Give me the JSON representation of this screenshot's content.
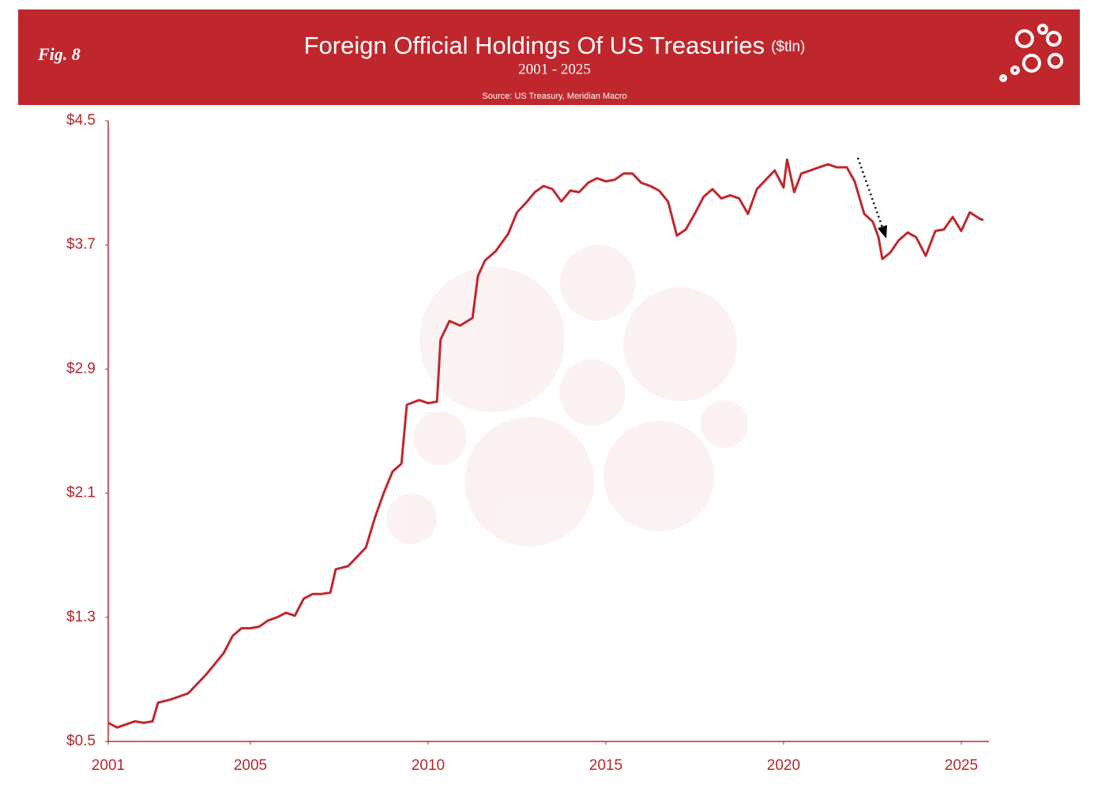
{
  "fig_label": "Fig. 8",
  "source": "Source: US Treasury, Meridian Macro",
  "chart_data": {
    "type": "line",
    "title": "Foreign Official Holdings Of US Treasuries",
    "title_unit": "($tln)",
    "subtitle": "2001 - 2025",
    "color": "#c0272d",
    "x": [
      2001.0,
      2001.25,
      2001.5,
      2001.75,
      2002.0,
      2002.25,
      2002.4,
      2002.75,
      2003.0,
      2003.25,
      2003.5,
      2003.75,
      2004.0,
      2004.25,
      2004.5,
      2004.75,
      2005.0,
      2005.25,
      2005.5,
      2005.75,
      2006.0,
      2006.25,
      2006.5,
      2006.75,
      2007.0,
      2007.25,
      2007.4,
      2007.75,
      2008.0,
      2008.25,
      2008.5,
      2008.75,
      2009.0,
      2009.25,
      2009.4,
      2009.75,
      2010.0,
      2010.25,
      2010.35,
      2010.6,
      2010.9,
      2011.25,
      2011.4,
      2011.6,
      2011.9,
      2012.25,
      2012.5,
      2012.75,
      2013.0,
      2013.25,
      2013.5,
      2013.75,
      2014.0,
      2014.25,
      2014.5,
      2014.75,
      2015.0,
      2015.25,
      2015.5,
      2015.75,
      2016.0,
      2016.25,
      2016.5,
      2016.75,
      2017.0,
      2017.25,
      2017.5,
      2017.75,
      2018.0,
      2018.25,
      2018.5,
      2018.75,
      2019.0,
      2019.25,
      2019.5,
      2019.75,
      2020.0,
      2020.1,
      2020.3,
      2020.5,
      2020.75,
      2021.0,
      2021.25,
      2021.5,
      2021.78,
      2022.0,
      2022.27,
      2022.51,
      2022.67,
      2022.78,
      2023.0,
      2023.24,
      2023.49,
      2023.73,
      2024.0,
      2024.27,
      2024.51,
      2024.76,
      2025.0,
      2025.24,
      2025.51,
      2025.62
    ],
    "values": [
      0.62,
      0.59,
      0.61,
      0.63,
      0.62,
      0.63,
      0.75,
      0.77,
      0.79,
      0.81,
      0.87,
      0.93,
      1.0,
      1.07,
      1.18,
      1.23,
      1.23,
      1.24,
      1.28,
      1.3,
      1.33,
      1.31,
      1.42,
      1.45,
      1.45,
      1.46,
      1.61,
      1.63,
      1.69,
      1.75,
      1.94,
      2.1,
      2.24,
      2.29,
      2.67,
      2.7,
      2.68,
      2.69,
      3.09,
      3.21,
      3.18,
      3.23,
      3.5,
      3.6,
      3.66,
      3.77,
      3.91,
      3.97,
      4.04,
      4.08,
      4.06,
      3.98,
      4.05,
      4.04,
      4.1,
      4.13,
      4.11,
      4.12,
      4.16,
      4.16,
      4.1,
      4.08,
      4.05,
      3.98,
      3.76,
      3.8,
      3.9,
      4.01,
      4.06,
      4.0,
      4.02,
      4.0,
      3.9,
      4.06,
      4.12,
      4.18,
      4.07,
      4.25,
      4.04,
      4.16,
      4.18,
      4.2,
      4.22,
      4.2,
      4.2,
      4.11,
      3.9,
      3.85,
      3.75,
      3.61,
      3.65,
      3.73,
      3.78,
      3.75,
      3.63,
      3.79,
      3.8,
      3.88,
      3.79,
      3.91,
      3.87,
      3.86
    ],
    "xlim": [
      2001,
      2025.78
    ],
    "xticks": [
      2001,
      2005,
      2010,
      2015,
      2020,
      2025
    ],
    "ylim": [
      0.5,
      4.5
    ],
    "yticks": [
      {
        "value": 0.5,
        "label": "$0.5"
      },
      {
        "value": 1.3,
        "label": "$1.3"
      },
      {
        "value": 2.1,
        "label": "$2.1"
      },
      {
        "value": 2.9,
        "label": "$2.9"
      },
      {
        "value": 3.7,
        "label": "$3.7"
      },
      {
        "value": 4.5,
        "label": "$4.5"
      }
    ]
  }
}
